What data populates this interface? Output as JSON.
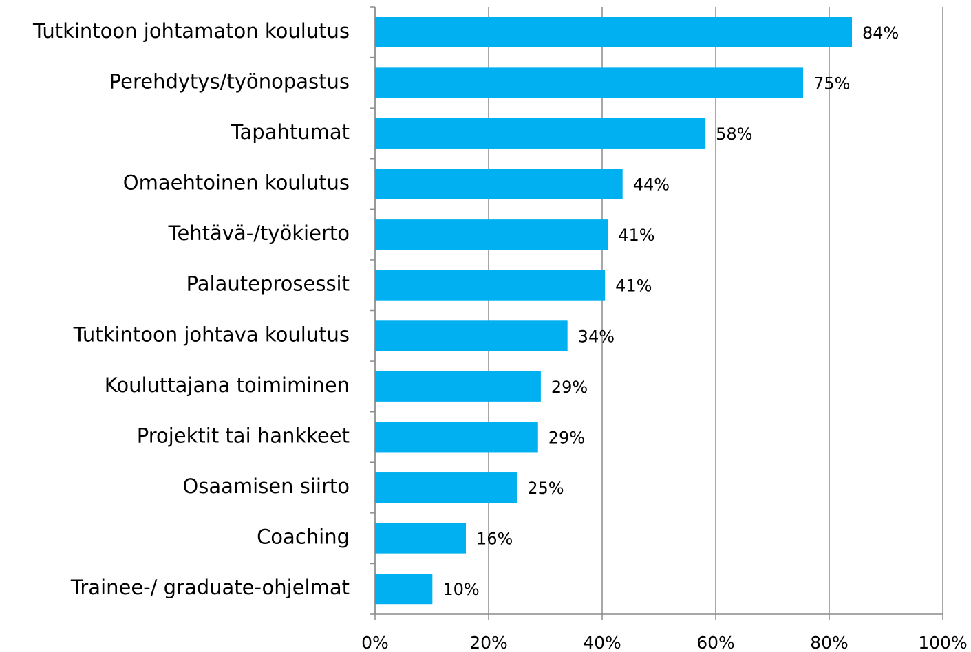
{
  "chart_data": {
    "type": "bar",
    "orientation": "horizontal",
    "categories": [
      "Tutkintoon johtamaton koulutus",
      "Perehdytys/työnopastus",
      "Tapahtumat",
      "Omaehtoinen koulutus",
      "Tehtävä-/työkierto",
      "Palauteprosessit",
      "Tutkintoon johtava koulutus",
      "Kouluttajana toimiminen",
      "Projektit tai hankkeet",
      "Osaamisen siirto",
      "Coaching",
      "Trainee-/ graduate-ohjelmat"
    ],
    "values": [
      84,
      75.4,
      58.2,
      43.6,
      41,
      40.5,
      33.9,
      29.2,
      28.7,
      25,
      16,
      10.1
    ],
    "value_labels": [
      "84%",
      "75%",
      "58%",
      "44%",
      "41%",
      "41%",
      "34%",
      "29%",
      "29%",
      "25%",
      "16%",
      "10%"
    ],
    "color": "#00b0f0",
    "xlim": [
      0,
      100
    ],
    "xticks": [
      {
        "value": 0,
        "label": "0%"
      },
      {
        "value": 20,
        "label": "20%"
      },
      {
        "value": 40,
        "label": "40%"
      },
      {
        "value": 60,
        "label": "60%"
      },
      {
        "value": 80,
        "label": "80%"
      },
      {
        "value": 100,
        "label": "100%"
      }
    ],
    "grid": true
  }
}
